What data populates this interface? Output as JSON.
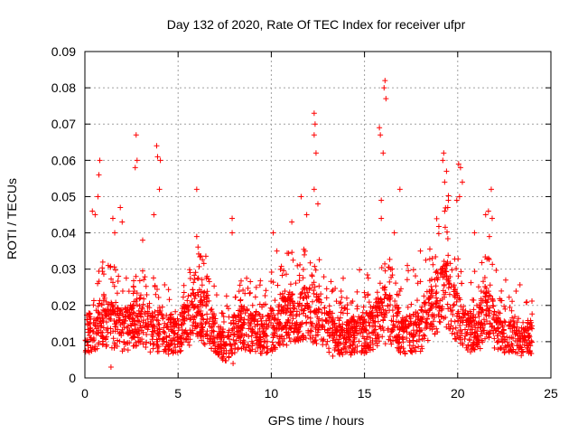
{
  "chart_data": {
    "type": "scatter",
    "title": "Day 132 of 2020, Rate Of TEC Index for receiver ufpr",
    "xlabel": "GPS time / hours",
    "ylabel": "ROTI / TECUs",
    "xlim": [
      0,
      25
    ],
    "ylim": [
      0,
      0.09
    ],
    "x_ticks": [
      0,
      5,
      10,
      15,
      20,
      25
    ],
    "y_ticks": [
      0,
      0.01,
      0.02,
      0.03,
      0.04,
      0.05,
      0.06,
      0.07,
      0.08,
      0.09
    ],
    "x_tick_labels": [
      "0",
      "5",
      "10",
      "15",
      "20",
      "25"
    ],
    "y_tick_labels": [
      "0",
      "0.01",
      "0.02",
      "0.03",
      "0.04",
      "0.05",
      "0.06",
      "0.07",
      "0.08",
      "0.09"
    ],
    "grid": true,
    "marker": "+",
    "color": "#ff0000",
    "series": [
      {
        "name": "ROTI",
        "baseline": [
          [
            0.0,
            0.012
          ],
          [
            0.5,
            0.013
          ],
          [
            1.0,
            0.016
          ],
          [
            1.5,
            0.015
          ],
          [
            2.0,
            0.013
          ],
          [
            2.5,
            0.014
          ],
          [
            3.0,
            0.016
          ],
          [
            3.5,
            0.013
          ],
          [
            4.0,
            0.013
          ],
          [
            4.5,
            0.012
          ],
          [
            5.0,
            0.012
          ],
          [
            5.5,
            0.015
          ],
          [
            6.0,
            0.02
          ],
          [
            6.5,
            0.016
          ],
          [
            7.0,
            0.012
          ],
          [
            7.5,
            0.008
          ],
          [
            8.0,
            0.012
          ],
          [
            8.5,
            0.014
          ],
          [
            9.0,
            0.013
          ],
          [
            9.5,
            0.012
          ],
          [
            10.0,
            0.013
          ],
          [
            10.5,
            0.015
          ],
          [
            11.0,
            0.017
          ],
          [
            11.5,
            0.018
          ],
          [
            12.0,
            0.018
          ],
          [
            12.5,
            0.016
          ],
          [
            13.0,
            0.013
          ],
          [
            13.5,
            0.012
          ],
          [
            14.0,
            0.011
          ],
          [
            14.5,
            0.012
          ],
          [
            15.0,
            0.012
          ],
          [
            15.5,
            0.014
          ],
          [
            16.0,
            0.016
          ],
          [
            16.5,
            0.016
          ],
          [
            17.0,
            0.012
          ],
          [
            17.5,
            0.012
          ],
          [
            18.0,
            0.013
          ],
          [
            18.5,
            0.018
          ],
          [
            19.0,
            0.022
          ],
          [
            19.5,
            0.024
          ],
          [
            20.0,
            0.016
          ],
          [
            20.5,
            0.013
          ],
          [
            21.0,
            0.012
          ],
          [
            21.5,
            0.018
          ],
          [
            22.0,
            0.014
          ],
          [
            22.5,
            0.011
          ],
          [
            23.0,
            0.012
          ],
          [
            23.5,
            0.011
          ],
          [
            24.0,
            0.011
          ]
        ],
        "peaks": [
          [
            0.4,
            0.046
          ],
          [
            0.55,
            0.045
          ],
          [
            0.8,
            0.06
          ],
          [
            0.75,
            0.056
          ],
          [
            0.7,
            0.05
          ],
          [
            1.5,
            0.044
          ],
          [
            1.6,
            0.04
          ],
          [
            1.9,
            0.047
          ],
          [
            2.0,
            0.043
          ],
          [
            2.75,
            0.067
          ],
          [
            2.8,
            0.06
          ],
          [
            2.7,
            0.058
          ],
          [
            3.1,
            0.038
          ],
          [
            3.85,
            0.064
          ],
          [
            3.9,
            0.061
          ],
          [
            4.05,
            0.06
          ],
          [
            4.0,
            0.052
          ],
          [
            3.7,
            0.045
          ],
          [
            6.0,
            0.052
          ],
          [
            6.0,
            0.039
          ],
          [
            7.9,
            0.044
          ],
          [
            7.9,
            0.04
          ],
          [
            10.1,
            0.04
          ],
          [
            10.3,
            0.035
          ],
          [
            11.1,
            0.043
          ],
          [
            11.6,
            0.05
          ],
          [
            11.9,
            0.045
          ],
          [
            12.3,
            0.073
          ],
          [
            12.35,
            0.07
          ],
          [
            12.3,
            0.067
          ],
          [
            12.4,
            0.062
          ],
          [
            12.3,
            0.052
          ],
          [
            12.5,
            0.048
          ],
          [
            15.8,
            0.069
          ],
          [
            15.85,
            0.067
          ],
          [
            16.1,
            0.082
          ],
          [
            16.05,
            0.08
          ],
          [
            16.15,
            0.077
          ],
          [
            16.0,
            0.062
          ],
          [
            15.9,
            0.049
          ],
          [
            15.9,
            0.044
          ],
          [
            16.9,
            0.052
          ],
          [
            16.6,
            0.04
          ],
          [
            19.25,
            0.062
          ],
          [
            19.2,
            0.06
          ],
          [
            19.4,
            0.057
          ],
          [
            19.3,
            0.054
          ],
          [
            19.5,
            0.049
          ],
          [
            19.3,
            0.046
          ],
          [
            20.05,
            0.059
          ],
          [
            20.15,
            0.058
          ],
          [
            20.25,
            0.054
          ],
          [
            20.1,
            0.05
          ],
          [
            19.95,
            0.049
          ],
          [
            21.8,
            0.052
          ],
          [
            21.65,
            0.046
          ],
          [
            21.85,
            0.044
          ],
          [
            21.5,
            0.045
          ],
          [
            21.7,
            0.039
          ],
          [
            20.9,
            0.04
          ],
          [
            17.3,
            0.031
          ],
          [
            18.0,
            0.035
          ],
          [
            9.0,
            0.02
          ],
          [
            7.95,
            0.004
          ],
          [
            1.4,
            0.003
          ],
          [
            13.3,
            0.006
          ]
        ]
      }
    ]
  }
}
